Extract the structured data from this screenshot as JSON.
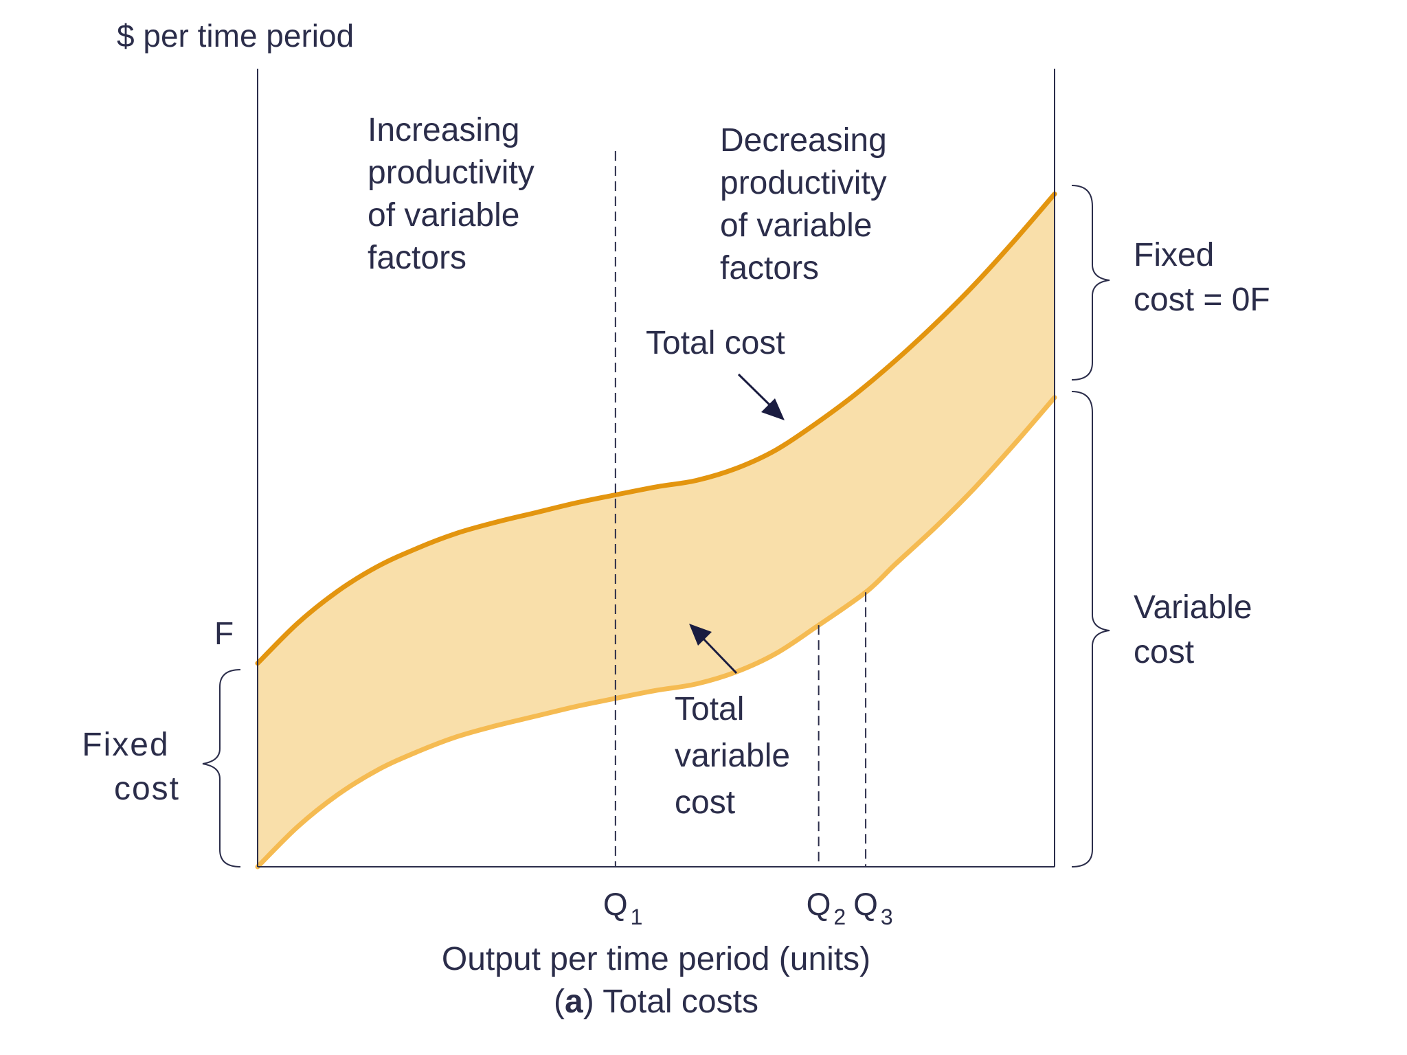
{
  "chart_data": {
    "type": "area",
    "title": "",
    "caption": {
      "prefix": "(",
      "bold": "a",
      "suffix": ") Total costs"
    },
    "ylabel": "$ per time period",
    "xlabel": "Output per time period (units)",
    "x_ticks": [
      {
        "base": "Q",
        "sub": "1",
        "x": 0.449
      },
      {
        "base": "Q",
        "sub": "2",
        "x": 0.704
      },
      {
        "base": "Q",
        "sub": "3",
        "x": 0.763
      }
    ],
    "y_tick": {
      "label": "F",
      "y": 0.255
    },
    "xlim": [
      0,
      1
    ],
    "ylim": [
      0,
      1
    ],
    "series": [
      {
        "name": "Total cost",
        "color": "#e3950f",
        "x": [
          0,
          0.05,
          0.1,
          0.15,
          0.2,
          0.25,
          0.3,
          0.35,
          0.4,
          0.449,
          0.5,
          0.55,
          0.6,
          0.65,
          0.7,
          0.75,
          0.8,
          0.85,
          0.9,
          0.95,
          1
        ],
        "y": [
          0.255,
          0.305,
          0.345,
          0.376,
          0.399,
          0.418,
          0.432,
          0.444,
          0.456,
          0.466,
          0.476,
          0.484,
          0.499,
          0.522,
          0.555,
          0.592,
          0.634,
          0.68,
          0.73,
          0.785,
          0.843
        ]
      },
      {
        "name": "Total variable cost",
        "color": "#f5bb52",
        "x": [
          0,
          0.05,
          0.1,
          0.15,
          0.2,
          0.25,
          0.3,
          0.35,
          0.4,
          0.449,
          0.5,
          0.55,
          0.6,
          0.65,
          0.7,
          0.763,
          0.8,
          0.85,
          0.9,
          0.95,
          1
        ],
        "y": [
          0,
          0.05,
          0.09,
          0.121,
          0.144,
          0.163,
          0.177,
          0.189,
          0.201,
          0.211,
          0.221,
          0.229,
          0.244,
          0.267,
          0.3,
          0.344,
          0.379,
          0.425,
          0.475,
          0.53,
          0.588
        ]
      }
    ],
    "band_color": "#f9dfaa",
    "regions": [
      {
        "text": [
          "Increasing",
          "productivity",
          "of variable",
          "factors"
        ]
      },
      {
        "text": [
          "Decreasing",
          "productivity",
          "of variable",
          "factors"
        ]
      }
    ],
    "annotations": {
      "total_cost": "Total cost",
      "total_variable_cost": [
        "Total",
        "variable",
        "cost"
      ],
      "fixed_cost_right": [
        "Fixed",
        "cost = 0F"
      ],
      "variable_cost_right": [
        "Variable",
        "cost"
      ],
      "fixed_cost_left": [
        "Fixed",
        "cost"
      ]
    },
    "grid": false,
    "legend": "none"
  }
}
